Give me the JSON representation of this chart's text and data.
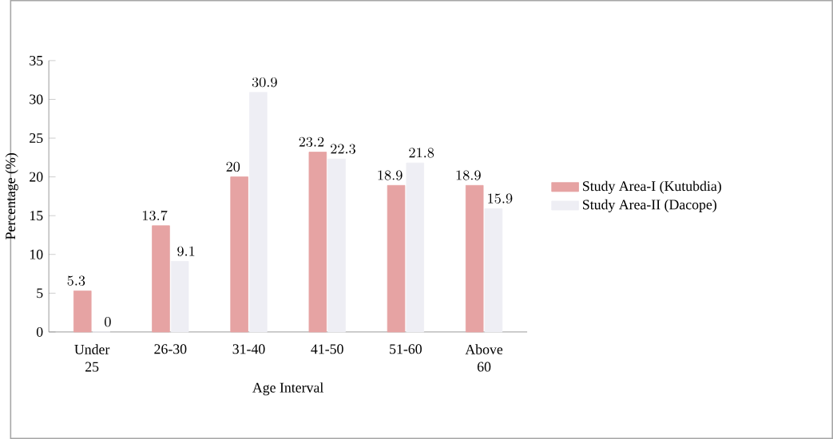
{
  "chart_data": {
    "type": "bar",
    "xlabel": "Age Interval",
    "ylabel": "Percentage (%)",
    "categories": [
      "Under 25",
      "26-30",
      "31-40",
      "41-50",
      "51-60",
      "Above 60"
    ],
    "series": [
      {
        "name": "Study Area-I (Kutubdia)",
        "color": "#e6a3a3",
        "values": [
          5.3,
          13.7,
          20,
          23.2,
          18.9,
          18.9
        ]
      },
      {
        "name": "Study Area-II (Dacope)",
        "color": "#eeeef4",
        "values": [
          0,
          9.1,
          30.9,
          22.3,
          21.8,
          15.9
        ]
      }
    ],
    "ylim": [
      0,
      35
    ],
    "yticks": [
      0,
      5,
      10,
      15,
      20,
      25,
      30,
      35
    ],
    "data_labels": true,
    "legend": "right",
    "grid": false
  }
}
